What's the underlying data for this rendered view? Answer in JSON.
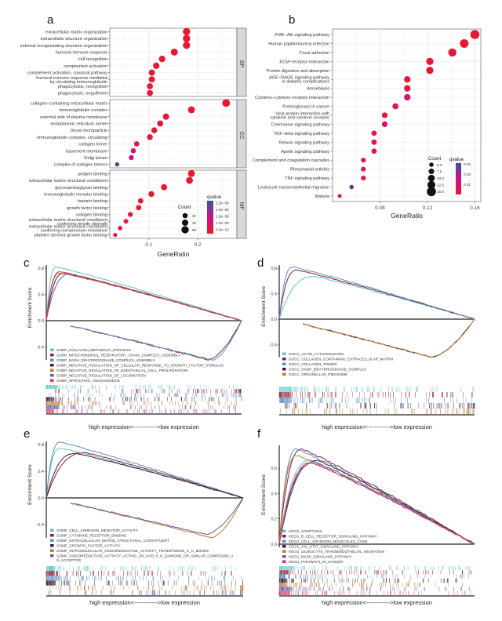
{
  "figure": {
    "panels": [
      "a",
      "b",
      "c",
      "d",
      "e",
      "f"
    ]
  },
  "chart_data": [
    {
      "id": "a",
      "type": "scatter",
      "subtype": "dotplot",
      "title": "",
      "xlabel": "GeneRatio",
      "ylabel": "",
      "xlim": [
        0.02,
        0.28
      ],
      "xticks": [
        0.1,
        0.2
      ],
      "xtick_labels": [
        "0.1",
        "0.2"
      ],
      "grid": true,
      "facets": [
        {
          "name": "BP",
          "terms": [
            {
              "label": "extracellular matrix organization",
              "x": 0.177,
              "count": 60,
              "q": 1e-10
            },
            {
              "label": "extracellular structure organization",
              "x": 0.177,
              "count": 60,
              "q": 1e-10
            },
            {
              "label": "external encapsulating structure organization",
              "x": 0.177,
              "count": 60,
              "q": 1e-10
            },
            {
              "label": "humoral immune response",
              "x": 0.152,
              "count": 52,
              "q": 1e-10
            },
            {
              "label": "cell recognition",
              "x": 0.127,
              "count": 44,
              "q": 2e-10
            },
            {
              "label": "complement activation",
              "x": 0.115,
              "count": 40,
              "q": 2e-10
            },
            {
              "label": "complement activation, classical pathway",
              "x": 0.106,
              "count": 37,
              "q": 2e-10
            },
            {
              "label": "humoral immune response mediated\nby circulating immunoglobulin",
              "x": 0.106,
              "count": 37,
              "q": 2e-10
            },
            {
              "label": "phagocytosis, recognition",
              "x": 0.102,
              "count": 35,
              "q": 2e-10
            },
            {
              "label": "phagocytosis, engulfment",
              "x": 0.102,
              "count": 35,
              "q": 2e-10
            }
          ]
        },
        {
          "name": "CC",
          "terms": [
            {
              "label": "collagen−containing extracellular matrix",
              "x": 0.258,
              "count": 70,
              "q": 1e-10
            },
            {
              "label": "immunoglobulin complex",
              "x": 0.187,
              "count": 52,
              "q": 2e-10
            },
            {
              "label": "external side of plasma membrane",
              "x": 0.135,
              "count": 38,
              "q": 3e-10
            },
            {
              "label": "endoplasmic reticulum lumen",
              "x": 0.123,
              "count": 35,
              "q": 3e-10
            },
            {
              "label": "blood microparticle",
              "x": 0.111,
              "count": 32,
              "q": 3e-10
            },
            {
              "label": "immunoglobulin complex, circulating",
              "x": 0.102,
              "count": 30,
              "q": 4e-10
            },
            {
              "label": "collagen trimer",
              "x": 0.075,
              "count": 22,
              "q": 6e-10
            },
            {
              "label": "basement membrane",
              "x": 0.068,
              "count": 20,
              "q": 8e-10
            },
            {
              "label": "Golgi lumen",
              "x": 0.064,
              "count": 18,
              "q": 1.3e-09
            },
            {
              "label": "complex of collagen trimers",
              "x": 0.035,
              "count": 10,
              "q": 2.5e-09
            }
          ]
        },
        {
          "name": "MF",
          "terms": [
            {
              "label": "antigen binding",
              "x": 0.187,
              "count": 52,
              "q": 1e-10
            },
            {
              "label": "extracellular matrix structural constituent",
              "x": 0.183,
              "count": 51,
              "q": 1e-10
            },
            {
              "label": "glycosaminoglycan binding",
              "x": 0.131,
              "count": 37,
              "q": 2e-10
            },
            {
              "label": "immunoglobulin receptor binding",
              "x": 0.105,
              "count": 30,
              "q": 2e-10
            },
            {
              "label": "heparin binding",
              "x": 0.083,
              "count": 24,
              "q": 2e-10
            },
            {
              "label": "growth factor binding",
              "x": 0.079,
              "count": 23,
              "q": 3e-10
            },
            {
              "label": "collagen binding",
              "x": 0.062,
              "count": 18,
              "q": 3e-10
            },
            {
              "label": "extracellular matrix structural constituent\nconferring tensile strength",
              "x": 0.053,
              "count": 15,
              "q": 3e-10
            },
            {
              "label": "extracellular matrix structural constituent\nconferring compression resistance",
              "x": 0.041,
              "count": 12,
              "q": 3e-10
            },
            {
              "label": "platelet−derived growth factor binding",
              "x": 0.031,
              "count": 8,
              "q": 4e-10
            }
          ]
        }
      ],
      "legend_size": {
        "title": "Count",
        "values": [
          20,
          40,
          60
        ],
        "labels": [
          "20",
          "40",
          "60"
        ]
      },
      "legend_color": {
        "title": "qvalue",
        "labels": [
          "2.5e−09",
          "2.0e−09",
          "1.5e−09",
          "1.0e−09",
          "5.0e−10"
        ],
        "range": [
          1e-10,
          2.5e-09
        ],
        "low_color": "#e8192c",
        "high_color": "#3a4fa0"
      },
      "legend_placement": "bottom-right"
    },
    {
      "id": "b",
      "type": "scatter",
      "subtype": "dotplot",
      "title": "",
      "xlabel": "GeneRatio",
      "ylabel": "",
      "xlim": [
        0.04,
        0.165
      ],
      "xticks": [
        0.08,
        0.12,
        0.16
      ],
      "xtick_labels": [
        "0.08",
        "0.12",
        "0.16"
      ],
      "grid": true,
      "terms": [
        {
          "label": "PI3K−Akt signaling pathway",
          "x": 0.16,
          "count": 15,
          "q": 0.003
        },
        {
          "label": "Human papillomavirus infection",
          "x": 0.151,
          "count": 14,
          "q": 0.003
        },
        {
          "label": "Focal adhesion",
          "x": 0.141,
          "count": 13,
          "q": 0.003
        },
        {
          "label": "ECM−receptor interaction",
          "x": 0.122,
          "count": 11,
          "q": 0.002
        },
        {
          "label": "Protein digestion and absorption",
          "x": 0.122,
          "count": 11,
          "q": 0.002
        },
        {
          "label": "AGE−RAGE signaling pathway\nin diabetic complications",
          "x": 0.103,
          "count": 9.5,
          "q": 0.003
        },
        {
          "label": "Amoebiasis",
          "x": 0.103,
          "count": 9.5,
          "q": 0.003
        },
        {
          "label": "Cytokine−cytokine receptor interaction",
          "x": 0.103,
          "count": 9.5,
          "q": 0.014
        },
        {
          "label": "Proteoglycans in cancer",
          "x": 0.093,
          "count": 8.5,
          "q": 0.004
        },
        {
          "label": "Viral protein interaction with\ncytokine and cytokine receptor",
          "x": 0.084,
          "count": 7.8,
          "q": 0.005
        },
        {
          "label": "Chemokine signaling pathway",
          "x": 0.084,
          "count": 7.8,
          "q": 0.012
        },
        {
          "label": "TGF−beta signaling pathway",
          "x": 0.075,
          "count": 7,
          "q": 0.005
        },
        {
          "label": "Relaxin signaling pathway",
          "x": 0.075,
          "count": 7,
          "q": 0.006
        },
        {
          "label": "Apelin signaling pathway",
          "x": 0.075,
          "count": 7,
          "q": 0.007
        },
        {
          "label": "Complement and coagulation cascades",
          "x": 0.066,
          "count": 6,
          "q": 0.006
        },
        {
          "label": "Rheumatoid arthritis",
          "x": 0.066,
          "count": 6,
          "q": 0.006
        },
        {
          "label": "TNF signaling pathway",
          "x": 0.066,
          "count": 6,
          "q": 0.007
        },
        {
          "label": "Leukocyte transendothelial migration",
          "x": 0.056,
          "count": 5,
          "q": 0.03
        },
        {
          "label": "Malaria",
          "x": 0.046,
          "count": 4,
          "q": 0.008
        }
      ],
      "legend_size": {
        "title": "Count",
        "values": [
          5,
          7.5,
          10,
          12.5,
          15
        ],
        "labels": [
          "5.0",
          "7.5",
          "10.0",
          "12.5",
          "15.0"
        ]
      },
      "legend_color": {
        "title": "qvalue",
        "labels": [
          "0.03",
          "0.02",
          "0.01"
        ],
        "range": [
          0.001,
          0.032
        ],
        "low_color": "#e8192c",
        "high_color": "#3a4fa0"
      },
      "legend_placement": "bottom-right"
    },
    {
      "id": "c",
      "type": "line",
      "subtype": "gsea",
      "ylabel": "Enrichment Score",
      "xlabel": "high expression<------------>low expression",
      "ylim": [
        -0.6,
        0.85
      ],
      "yticks": [
        0.8,
        0.4,
        0.0,
        -0.4
      ],
      "ytick_labels": [
        "0.8",
        "0.4",
        "0.0",
        "-0.4"
      ],
      "series": [
        {
          "name": "GOBP_COLLAGEN_METABOLIC_PROCESS",
          "color": "#5cc6c4",
          "direction": "up",
          "peak": 0.82,
          "peak_pos": 0.05
        },
        {
          "name": "GOBP_MITOCHONDRIAL_RESPIRATORY_CHAIN_COMPLEX_ASSEMBLY",
          "color": "#8a1c36",
          "direction": "down",
          "peak": -0.6,
          "peak_pos": 0.83
        },
        {
          "name": "GOBP_NADH_DEHYDROGENASE_COMPLEX_ASSEMBLY",
          "color": "#5b8fc0",
          "direction": "down",
          "peak": -0.6,
          "peak_pos": 0.85
        },
        {
          "name": "GOBP_NEGATIVE_REGULATION_OF_CELLULAR_RESPONSE_TO_GROWTH_FACTOR_STIMULUS",
          "color": "#3a1d3a",
          "direction": "up",
          "peak": 0.72,
          "peak_pos": 0.09
        },
        {
          "name": "GOBP_NEGATIVE_REGULATION_OF_ENDOTHELIAL_CELL_PROLIFERATION",
          "color": "#b5782e",
          "direction": "up",
          "peak": 0.73,
          "peak_pos": 0.07
        },
        {
          "name": "GOBP_NEGATIVE_REGULATION_OF_LOCOMOTION",
          "color": "#6a5a9a",
          "direction": "up",
          "peak": 0.71,
          "peak_pos": 0.12
        },
        {
          "name": "GOBP_SPROUTING_ANGIOGENESIS",
          "color": "#d8336a",
          "direction": "up",
          "peak": 0.75,
          "peak_pos": 0.07
        }
      ]
    },
    {
      "id": "d",
      "type": "line",
      "subtype": "gsea",
      "ylabel": "Enrichment Score",
      "xlabel": "high expression<------------>low expression",
      "ylim": [
        -0.6,
        0.85
      ],
      "yticks": [
        0.8,
        0.4,
        0.0,
        -0.4
      ],
      "ytick_labels": [
        "0.8",
        "0.4",
        "0.0",
        "-0.4"
      ],
      "series": [
        {
          "name": "GOCC_ACTIN_CYTOSKELETON",
          "color": "#5cc6c4",
          "direction": "up",
          "peak": 0.67,
          "peak_pos": 0.18
        },
        {
          "name": "GOCC_COLLAGEN_CONTAINING_EXTRACELLULAR_MATRIX",
          "color": "#8a1c36",
          "direction": "up",
          "peak": 0.77,
          "peak_pos": 0.09
        },
        {
          "name": "GOCC_COLLAGEN_TRIMER",
          "color": "#5b8fc0",
          "direction": "up",
          "peak": 0.82,
          "peak_pos": 0.07
        },
        {
          "name": "GOCC_NADH_DEHYDROGENASE_COMPLEX",
          "color": "#3a1d3a",
          "direction": "down",
          "peak": -0.6,
          "peak_pos": 0.78
        },
        {
          "name": "GOCC_ORGANELLAR_RIBOSOME",
          "color": "#b5782e",
          "direction": "down",
          "peak": -0.6,
          "peak_pos": 0.78
        }
      ]
    },
    {
      "id": "e",
      "type": "line",
      "subtype": "gsea",
      "ylabel": "Enrichment Score",
      "xlabel": "high expression<------------>low expression",
      "ylim": [
        -0.6,
        0.85
      ],
      "yticks": [
        0.8,
        0.4,
        0.0,
        -0.4
      ],
      "ytick_labels": [
        "0.8",
        "0.4",
        "0.0",
        "-0.4"
      ],
      "series": [
        {
          "name": "GOMF_CELL_ADHESION_MEDIATOR_ACTIVITY",
          "color": "#5cc6c4",
          "direction": "up",
          "peak": 0.75,
          "peak_pos": 0.07
        },
        {
          "name": "GOMF_CYTOKINE_RECEPTOR_BINDING",
          "color": "#8a1c36",
          "direction": "up",
          "peak": 0.68,
          "peak_pos": 0.2
        },
        {
          "name": "GOMF_EXTRACELLULAR_MATRIX_STRUCTURAL_CONSTITUENT",
          "color": "#5b8fc0",
          "direction": "up",
          "peak": 0.84,
          "peak_pos": 0.07
        },
        {
          "name": "GOMF_GROWTH_FACTOR_ACTIVITY",
          "color": "#3a1d3a",
          "direction": "up",
          "peak": 0.67,
          "peak_pos": 0.15
        },
        {
          "name": "GOMF_INTRAMOLECULAR_OXIDOREDUCTASE_ACTIVITY_TRANSPOSING_C_C_BONDS",
          "color": "#b5782e",
          "direction": "down",
          "peak": -0.6,
          "peak_pos": 0.84
        },
        {
          "name": "GOMF_OXIDOREDUCTASE_ACTIVITY_ACTING_ON_NAD_P_H_QUINONE_OR_SIMILAR_COMPOUND_AS_ACCEPTOR",
          "color": "#6a5a9a",
          "direction": "down",
          "peak": -0.55,
          "peak_pos": 0.81
        }
      ]
    },
    {
      "id": "f",
      "type": "line",
      "subtype": "gsea",
      "ylabel": "Enrichment Score",
      "xlabel": "high expression<------------>low expression",
      "ylim": [
        0.0,
        0.78
      ],
      "yticks": [
        0.6,
        0.4,
        0.2,
        0.0
      ],
      "ytick_labels": [
        "0.6",
        "0.4",
        "0.2",
        "0.0"
      ],
      "series": [
        {
          "name": "KEGG_APOPTOSIS",
          "color": "#5cc6c4",
          "direction": "up",
          "peak": 0.66,
          "peak_pos": 0.16
        },
        {
          "name": "KEGG_B_CELL_RECEPTOR_SIGNALING_PATHWAY",
          "color": "#8a1c36",
          "direction": "up",
          "peak": 0.75,
          "peak_pos": 0.12
        },
        {
          "name": "KEGG_CELL_ADHESION_MOLECULES_CAMS",
          "color": "#5b8fc0",
          "direction": "up",
          "peak": 0.75,
          "peak_pos": 0.09
        },
        {
          "name": "KEGG_JAK_STAT_SIGNALING_PATHWAY",
          "color": "#3a1d3a",
          "direction": "up",
          "peak": 0.66,
          "peak_pos": 0.2
        },
        {
          "name": "KEGG_LEUKOCYTE_TRANSENDOTHELIAL_MIGRATION",
          "color": "#b5782e",
          "direction": "up",
          "peak": 0.7,
          "peak_pos": 0.09
        },
        {
          "name": "KEGG_MAPK_SIGNALING_PATHWAY",
          "color": "#6a5a9a",
          "direction": "up",
          "peak": 0.65,
          "peak_pos": 0.18
        },
        {
          "name": "KEGG_PATHWAYS_IN_CANCER",
          "color": "#d8336a",
          "direction": "up",
          "peak": 0.64,
          "peak_pos": 0.17
        }
      ]
    }
  ]
}
